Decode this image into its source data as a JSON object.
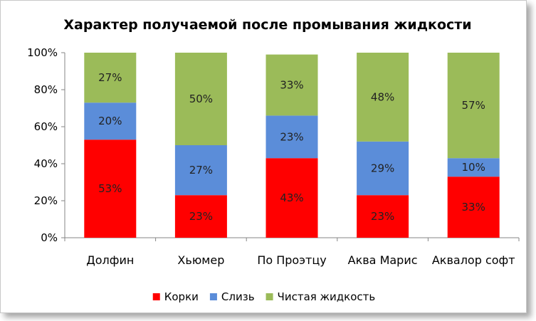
{
  "chart_data": {
    "type": "bar",
    "stacked": true,
    "title": "Характер получаемой после промывания жидкости",
    "categories": [
      "Долфин",
      "Хьюмер",
      "По Проэтцу",
      "Аква Марис",
      "Аквалор софт"
    ],
    "series": [
      {
        "name": "Корки",
        "color": "#ff0000",
        "values": [
          53,
          23,
          43,
          23,
          33
        ]
      },
      {
        "name": "Слизь",
        "color": "#5b8dd9",
        "values": [
          20,
          27,
          23,
          29,
          10
        ]
      },
      {
        "name": "Чистая жидкость",
        "color": "#9bbb59",
        "values": [
          27,
          50,
          33,
          48,
          57
        ]
      }
    ],
    "y_ticks": [
      "0%",
      "20%",
      "40%",
      "60%",
      "80%",
      "100%"
    ],
    "ylim": [
      0,
      100
    ],
    "value_suffix": "%",
    "grid": false,
    "legend_position": "bottom"
  }
}
